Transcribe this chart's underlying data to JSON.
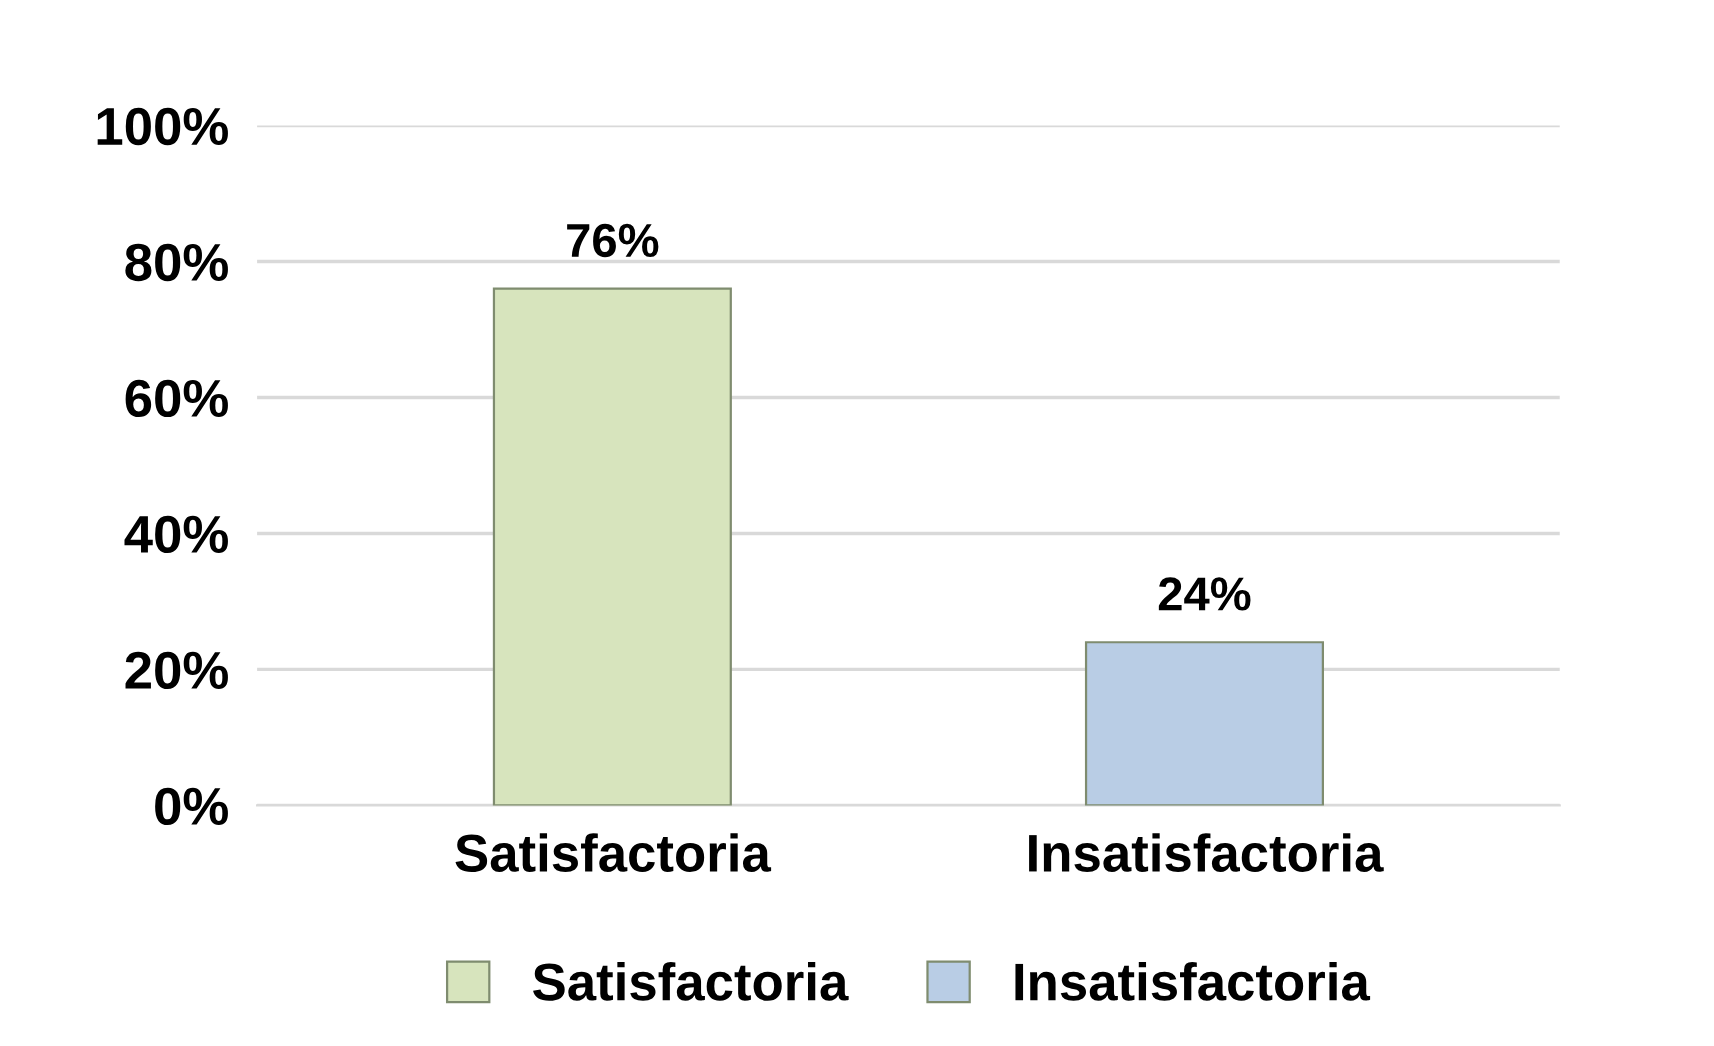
{
  "chart_data": {
    "type": "bar",
    "categories": [
      "Satisfactoria",
      "Insatisfactoria"
    ],
    "series": [
      {
        "name": "Satisfactoria",
        "color": "#d7e4bd",
        "values": [
          76,
          null
        ],
        "value_labels": [
          "76%",
          null
        ]
      },
      {
        "name": "Insatisfactoria",
        "color": "#b9cde5",
        "values": [
          null,
          24
        ],
        "value_labels": [
          null,
          "24%"
        ]
      }
    ],
    "ylim": [
      0,
      100
    ],
    "yticks": [
      {
        "value": 0,
        "label": "0%"
      },
      {
        "value": 20,
        "label": "20%"
      },
      {
        "value": 40,
        "label": "40%"
      },
      {
        "value": 60,
        "label": "60%"
      },
      {
        "value": 80,
        "label": "80%"
      },
      {
        "value": 100,
        "label": "100%"
      }
    ],
    "grid": "y",
    "legend": "bottom"
  }
}
